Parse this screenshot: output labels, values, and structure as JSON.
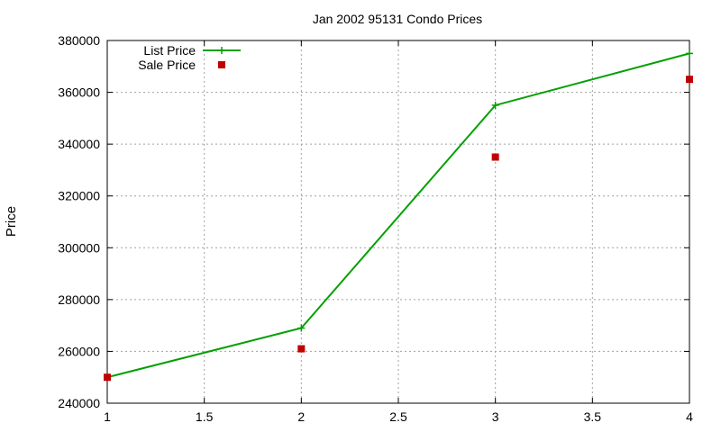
{
  "chart_data": {
    "type": "line",
    "title": "Jan 2002 95131 Condo Prices",
    "xlabel": "",
    "ylabel": "Price",
    "xlim": [
      1,
      4
    ],
    "ylim": [
      240000,
      380000
    ],
    "xticks": [
      "1",
      "1.5",
      "2",
      "2.5",
      "3",
      "3.5",
      "4"
    ],
    "yticks": [
      "240000",
      "260000",
      "280000",
      "300000",
      "320000",
      "340000",
      "360000",
      "380000"
    ],
    "grid": true,
    "legend_position": "top-left",
    "series": [
      {
        "name": "List Price",
        "style": "linespoints",
        "color": "#00a000",
        "marker": "plus",
        "x": [
          1,
          2,
          3,
          4
        ],
        "y": [
          250000,
          269000,
          355000,
          375000
        ]
      },
      {
        "name": "Sale Price",
        "style": "points",
        "color": "#c00000",
        "marker": "square",
        "x": [
          1,
          2,
          3,
          4
        ],
        "y": [
          250000,
          261000,
          335000,
          365000
        ]
      }
    ]
  }
}
